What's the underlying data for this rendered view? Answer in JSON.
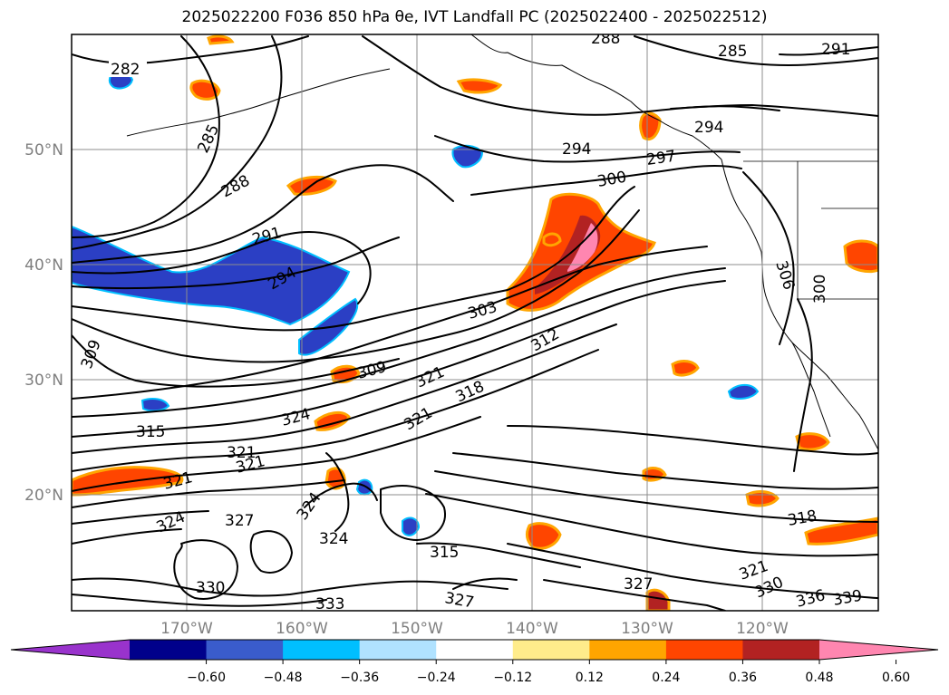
{
  "title": "2025022200 F036 850 hPa θe, IVT Landfall PC (2025022400 - 2025022512)",
  "map": {
    "lat_labels": [
      {
        "text": "50°N",
        "lat": 50
      },
      {
        "text": "40°N",
        "lat": 40
      },
      {
        "text": "30°N",
        "lat": 30
      },
      {
        "text": "20°N",
        "lat": 20
      }
    ],
    "lon_labels": [
      {
        "text": "170°W",
        "lon": -170
      },
      {
        "text": "160°W",
        "lon": -160
      },
      {
        "text": "150°W",
        "lon": -150
      },
      {
        "text": "140°W",
        "lon": -140
      },
      {
        "text": "130°W",
        "lon": -130
      },
      {
        "text": "120°W",
        "lon": -120
      }
    ],
    "contour_labels": [
      "282",
      "285",
      "288",
      "291",
      "294",
      "297",
      "300",
      "303",
      "306",
      "309",
      "312",
      "315",
      "318",
      "321",
      "324",
      "327",
      "330",
      "333",
      "336",
      "339"
    ],
    "colors": {
      "negative_strong": "#2b3fc4",
      "negative_edge": "#00bfff",
      "positive_core": "#ff86b0",
      "positive_high": "#b22222",
      "positive_mid": "#ff4500",
      "positive_low": "#ffa500",
      "positive_edge": "#ffec8b"
    }
  },
  "colorbar": {
    "ticks": [
      "−0.60",
      "−0.48",
      "−0.36",
      "−0.24",
      "−0.12",
      "0.12",
      "0.24",
      "0.36",
      "0.48",
      "0.60"
    ],
    "colors": [
      "#9933cc",
      "#00008b",
      "#3a5ccc",
      "#00bfff",
      "#b0e2ff",
      "#ffffff",
      "#ffec8b",
      "#ffa500",
      "#ff4500",
      "#b22222",
      "#ff86b0"
    ]
  }
}
